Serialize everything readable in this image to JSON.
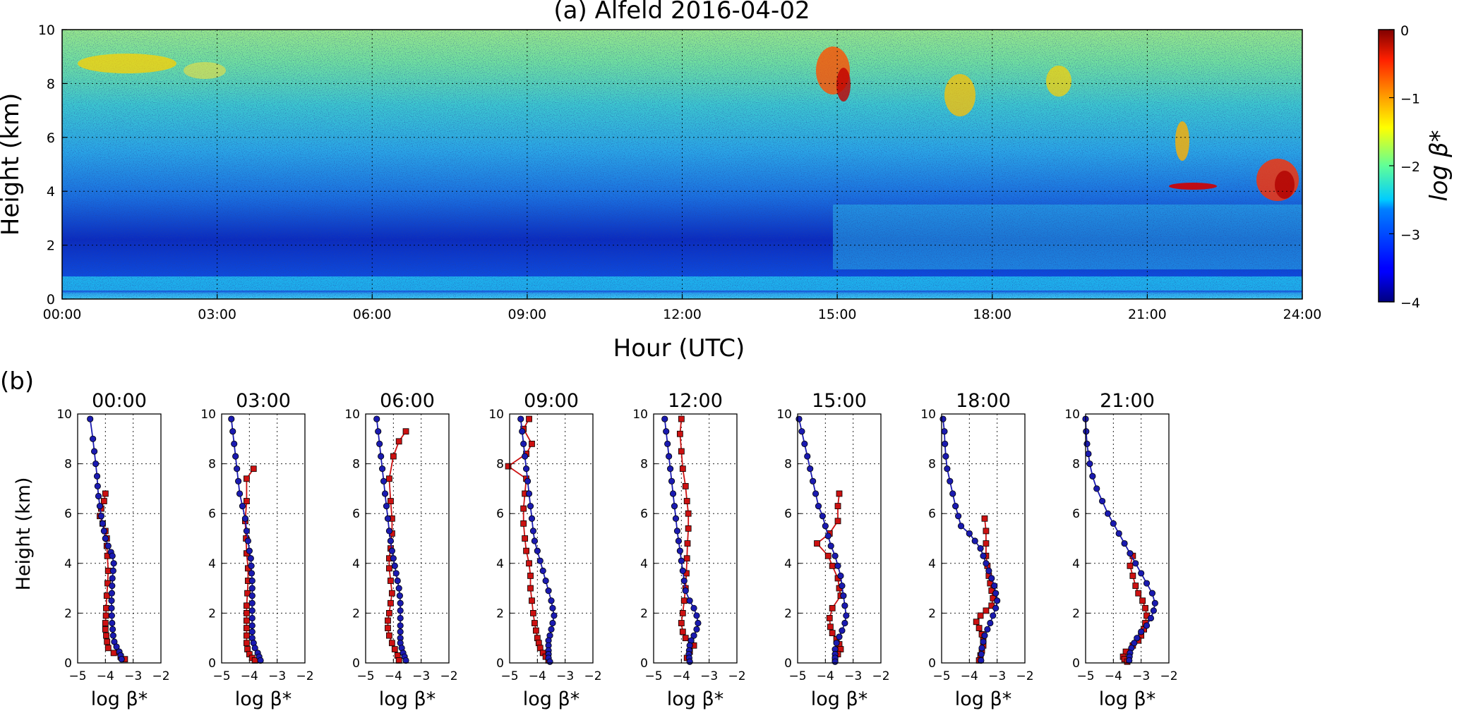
{
  "panel_a_tag": "(a)",
  "panel_b_tag": "(b)",
  "colorbar_label": "log β*",
  "chart_data": [
    {
      "type": "heatmap",
      "title": "(a) Alfeld 2016-04-02",
      "xlabel": "Hour (UTC)",
      "ylabel": "Height (km)",
      "xlim": [
        0,
        24
      ],
      "ylim": [
        0,
        10
      ],
      "x_ticks": [
        "00:00",
        "03:00",
        "06:00",
        "09:00",
        "12:00",
        "15:00",
        "18:00",
        "21:00",
        "24:00"
      ],
      "y_ticks": [
        "0",
        "2",
        "4",
        "6",
        "8",
        "10"
      ],
      "colorbar": {
        "label": "log β*",
        "range": [
          -4,
          0
        ],
        "ticks": [
          "−4",
          "−3",
          "−2",
          "−1",
          "0"
        ],
        "colormap": "jet"
      },
      "grid": true
    },
    {
      "type": "line",
      "panels": [
        {
          "title": "00:00",
          "blue": {
            "x": [
              -4.55,
              -4.45,
              -4.4,
              -4.35,
              -4.3,
              -4.28,
              -4.25,
              -4.2,
              -4.15,
              -4.1,
              -4.05,
              -4.0,
              -3.9,
              -3.8,
              -3.75,
              -3.7,
              -3.72,
              -3.75,
              -3.76,
              -3.77,
              -3.78,
              -3.78,
              -3.77,
              -3.76,
              -3.74,
              -3.72,
              -3.68,
              -3.6,
              -3.5,
              -3.45,
              -3.42
            ],
            "y": [
              9.8,
              9.0,
              8.5,
              8.0,
              7.5,
              7.1,
              6.7,
              6.3,
              5.9,
              5.6,
              5.3,
              5.0,
              4.7,
              4.45,
              4.3,
              4.0,
              3.7,
              3.4,
              3.1,
              2.8,
              2.5,
              2.2,
              1.9,
              1.6,
              1.35,
              1.1,
              0.85,
              0.65,
              0.45,
              0.3,
              0.15
            ]
          },
          "red": {
            "x": [
              -4.0,
              -4.05,
              -4.15,
              -4.2,
              -4.1,
              -4.0,
              -3.95,
              -3.95,
              -3.93,
              -3.9,
              -3.92,
              -3.95,
              -3.97,
              -3.98,
              -4.0,
              -4.0,
              -3.97,
              -3.94,
              -3.9,
              -3.7,
              -3.45,
              -3.3
            ],
            "y": [
              6.8,
              6.5,
              6.2,
              5.9,
              5.6,
              5.3,
              5.0,
              4.7,
              4.3,
              3.7,
              3.2,
              2.7,
              2.2,
              1.9,
              1.6,
              1.35,
              1.1,
              0.85,
              0.6,
              0.4,
              0.25,
              0.15
            ]
          }
        },
        {
          "title": "03:00",
          "blue": {
            "x": [
              -4.65,
              -4.6,
              -4.55,
              -4.5,
              -4.45,
              -4.4,
              -4.35,
              -4.25,
              -4.15,
              -4.1,
              -4.05,
              -4.0,
              -3.95,
              -3.93,
              -3.92,
              -3.9,
              -3.9,
              -3.9,
              -3.9,
              -3.9,
              -3.9,
              -3.9,
              -3.9,
              -3.9,
              -3.85,
              -3.8,
              -3.7,
              -3.65,
              -3.6
            ],
            "y": [
              9.8,
              9.3,
              8.8,
              8.3,
              7.8,
              7.3,
              6.8,
              6.3,
              5.8,
              5.3,
              4.9,
              4.5,
              4.2,
              3.9,
              3.6,
              3.3,
              3.0,
              2.7,
              2.4,
              2.1,
              1.8,
              1.5,
              1.25,
              1.0,
              0.8,
              0.6,
              0.4,
              0.25,
              0.1
            ]
          },
          "red": {
            "x": [
              -3.85,
              -4.1,
              -4.1,
              -4.15,
              -4.12,
              -4.1,
              -4.05,
              -4.05,
              -4.07,
              -4.1,
              -4.1,
              -4.1,
              -4.1,
              -4.1,
              -4.1,
              -4.07,
              -4.0,
              -3.9,
              -3.8
            ],
            "y": [
              7.8,
              7.4,
              6.5,
              5.7,
              5.0,
              4.4,
              3.8,
              3.3,
              2.8,
              2.3,
              2.0,
              1.7,
              1.4,
              1.1,
              0.8,
              0.55,
              0.35,
              0.2,
              0.1
            ]
          }
        },
        {
          "title": "06:00",
          "blue": {
            "x": [
              -4.6,
              -4.55,
              -4.5,
              -4.45,
              -4.4,
              -4.35,
              -4.3,
              -4.25,
              -4.2,
              -4.15,
              -4.1,
              -4.05,
              -4.0,
              -3.95,
              -3.9,
              -3.85,
              -3.8,
              -3.77,
              -3.75,
              -3.75,
              -3.75,
              -3.75,
              -3.75,
              -3.75,
              -3.75,
              -3.7,
              -3.65,
              -3.6,
              -3.55
            ],
            "y": [
              9.8,
              9.3,
              8.8,
              8.3,
              7.8,
              7.3,
              6.8,
              6.3,
              5.8,
              5.3,
              4.9,
              4.5,
              4.2,
              3.9,
              3.6,
              3.3,
              3.0,
              2.7,
              2.4,
              2.1,
              1.8,
              1.5,
              1.25,
              1.0,
              0.8,
              0.6,
              0.4,
              0.25,
              0.1
            ]
          },
          "red": {
            "x": [
              -3.55,
              -3.8,
              -4.0,
              -4.15,
              -4.1,
              -4.05,
              -4.05,
              -4.1,
              -4.15,
              -4.15,
              -4.1,
              -4.05,
              -4.1,
              -4.15,
              -4.2,
              -4.2,
              -4.15,
              -4.05,
              -3.95,
              -3.85,
              -3.8
            ],
            "y": [
              9.3,
              8.9,
              8.3,
              7.4,
              6.5,
              5.8,
              5.2,
              4.6,
              4.2,
              3.8,
              3.3,
              2.8,
              2.4,
              2.0,
              1.7,
              1.4,
              1.1,
              0.8,
              0.55,
              0.3,
              0.1
            ]
          }
        },
        {
          "title": "09:00",
          "blue": {
            "x": [
              -4.6,
              -4.55,
              -4.5,
              -4.45,
              -4.4,
              -4.35,
              -4.3,
              -4.25,
              -4.2,
              -4.15,
              -4.1,
              -4.0,
              -3.9,
              -3.8,
              -3.7,
              -3.6,
              -3.5,
              -3.45,
              -3.4,
              -3.45,
              -3.5,
              -3.55,
              -3.6,
              -3.6,
              -3.6,
              -3.6,
              -3.6,
              -3.55
            ],
            "y": [
              9.8,
              9.3,
              8.8,
              8.3,
              7.8,
              7.3,
              6.8,
              6.3,
              5.8,
              5.3,
              4.9,
              4.5,
              4.1,
              3.7,
              3.3,
              2.9,
              2.5,
              2.2,
              1.9,
              1.6,
              1.35,
              1.1,
              0.9,
              0.7,
              0.5,
              0.35,
              0.2,
              0.05
            ]
          },
          "red": {
            "x": [
              -4.3,
              -4.5,
              -4.2,
              -4.4,
              -5.05,
              -4.4,
              -4.45,
              -4.5,
              -4.5,
              -4.45,
              -4.4,
              -4.3,
              -4.25,
              -4.25,
              -4.2,
              -4.15,
              -4.1,
              -4.05,
              -4.0,
              -3.95,
              -3.9,
              -3.8,
              -3.7,
              -3.6
            ],
            "y": [
              9.8,
              9.4,
              8.8,
              8.4,
              7.9,
              7.4,
              6.8,
              6.2,
              5.6,
              5.0,
              4.5,
              4.0,
              3.5,
              3.0,
              2.5,
              2.0,
              1.6,
              1.3,
              1.0,
              0.8,
              0.6,
              0.4,
              0.25,
              0.1
            ]
          }
        },
        {
          "title": "12:00",
          "blue": {
            "x": [
              -4.6,
              -4.55,
              -4.5,
              -4.45,
              -4.4,
              -4.35,
              -4.3,
              -4.25,
              -4.2,
              -4.15,
              -4.1,
              -4.05,
              -4.0,
              -3.95,
              -3.9,
              -3.85,
              -3.7,
              -3.55,
              -3.45,
              -3.4,
              -3.45,
              -3.55,
              -3.65,
              -3.7,
              -3.72,
              -3.73,
              -3.72,
              -3.7
            ],
            "y": [
              9.8,
              9.3,
              8.8,
              8.3,
              7.8,
              7.3,
              6.8,
              6.3,
              5.8,
              5.3,
              4.9,
              4.5,
              4.1,
              3.7,
              3.3,
              2.9,
              2.5,
              2.2,
              1.9,
              1.6,
              1.35,
              1.1,
              0.9,
              0.7,
              0.5,
              0.35,
              0.2,
              0.05
            ]
          },
          "red": {
            "x": [
              -4.0,
              -4.05,
              -4.0,
              -3.95,
              -3.85,
              -3.8,
              -3.75,
              -3.75,
              -3.78,
              -3.8,
              -3.82,
              -3.85,
              -3.9,
              -3.95,
              -4.0,
              -3.95,
              -3.85,
              -3.65,
              -3.55,
              -3.7,
              -3.8
            ],
            "y": [
              9.8,
              9.2,
              8.5,
              7.8,
              7.1,
              6.5,
              6.0,
              5.4,
              4.8,
              4.2,
              3.6,
              3.0,
              2.5,
              2.0,
              1.6,
              1.25,
              1.0,
              0.85,
              0.7,
              0.45,
              0.2
            ]
          }
        },
        {
          "title": "15:00",
          "blue": {
            "x": [
              -4.95,
              -4.85,
              -4.75,
              -4.65,
              -4.55,
              -4.45,
              -4.35,
              -4.25,
              -4.1,
              -4.0,
              -3.9,
              -3.8,
              -3.65,
              -3.55,
              -3.45,
              -3.4,
              -3.35,
              -3.3,
              -3.25,
              -3.3,
              -3.4,
              -3.5,
              -3.6,
              -3.65,
              -3.65,
              -3.65,
              -3.65
            ],
            "y": [
              9.8,
              9.3,
              8.8,
              8.3,
              7.8,
              7.3,
              6.8,
              6.3,
              5.9,
              5.5,
              5.1,
              4.7,
              4.3,
              3.9,
              3.5,
              3.1,
              2.7,
              2.3,
              1.9,
              1.6,
              1.3,
              1.05,
              0.8,
              0.55,
              0.35,
              0.2,
              0.05
            ]
          },
          "red": {
            "x": [
              -3.5,
              -3.55,
              -3.55,
              -3.85,
              -4.3,
              -3.9,
              -3.75,
              -3.55,
              -3.5,
              -3.45,
              -3.75,
              -3.85,
              -3.82,
              -3.75,
              -3.6,
              -3.5,
              -3.45,
              -3.55,
              -3.65
            ],
            "y": [
              6.8,
              6.3,
              5.7,
              5.2,
              4.8,
              4.3,
              3.9,
              3.4,
              3.0,
              2.7,
              2.2,
              1.8,
              1.45,
              1.2,
              0.95,
              0.75,
              0.55,
              0.35,
              0.15
            ]
          }
        },
        {
          "title": "18:00",
          "blue": {
            "x": [
              -4.95,
              -4.9,
              -4.88,
              -4.85,
              -4.8,
              -4.7,
              -4.6,
              -4.5,
              -4.4,
              -4.3,
              -4.0,
              -3.8,
              -3.6,
              -3.5,
              -3.4,
              -3.3,
              -3.2,
              -3.1,
              -3.05,
              -3.0,
              -3.05,
              -3.15,
              -3.25,
              -3.35,
              -3.45,
              -3.5,
              -3.55,
              -3.57,
              -3.58
            ],
            "y": [
              9.8,
              9.3,
              8.8,
              8.3,
              7.8,
              7.3,
              6.8,
              6.3,
              5.9,
              5.5,
              5.2,
              4.9,
              4.6,
              4.3,
              4.0,
              3.7,
              3.4,
              3.1,
              2.8,
              2.5,
              2.2,
              1.9,
              1.6,
              1.35,
              1.1,
              0.85,
              0.6,
              0.35,
              0.1
            ]
          },
          "red": {
            "x": [
              -3.45,
              -3.4,
              -3.4,
              -3.4,
              -3.35,
              -3.3,
              -3.25,
              -3.2,
              -3.15,
              -3.2,
              -3.4,
              -3.6,
              -3.75,
              -3.65,
              -3.55,
              -3.5,
              -3.5,
              -3.55,
              -3.6,
              -3.65
            ],
            "y": [
              5.8,
              5.3,
              4.8,
              4.3,
              3.9,
              3.5,
              3.2,
              2.9,
              2.6,
              2.3,
              2.1,
              1.9,
              1.65,
              1.4,
              1.15,
              0.9,
              0.7,
              0.5,
              0.3,
              0.1
            ]
          }
        },
        {
          "title": "21:00",
          "blue": {
            "x": [
              -5.0,
              -4.98,
              -4.95,
              -4.9,
              -4.85,
              -4.75,
              -4.6,
              -4.4,
              -4.2,
              -4.0,
              -3.8,
              -3.6,
              -3.4,
              -3.2,
              -3.0,
              -2.8,
              -2.6,
              -2.5,
              -2.55,
              -2.65,
              -2.8,
              -3.0,
              -3.15,
              -3.25,
              -3.35,
              -3.4,
              -3.42,
              -3.43
            ],
            "y": [
              9.8,
              9.3,
              8.8,
              8.4,
              8.0,
              7.5,
              7.0,
              6.5,
              6.0,
              5.6,
              5.2,
              4.8,
              4.4,
              4.0,
              3.6,
              3.2,
              2.8,
              2.4,
              2.1,
              1.8,
              1.5,
              1.25,
              1.0,
              0.8,
              0.6,
              0.4,
              0.25,
              0.1
            ]
          },
          "red": {
            "x": [
              -3.3,
              -3.4,
              -3.3,
              -3.2,
              -3.1,
              -2.95,
              -2.85,
              -2.8,
              -2.85,
              -2.9,
              -3.0,
              -3.1,
              -3.3,
              -3.55,
              -3.65,
              -3.6,
              -3.5
            ],
            "y": [
              4.3,
              3.9,
              3.5,
              3.1,
              2.8,
              2.5,
              2.2,
              1.9,
              1.6,
              1.35,
              1.1,
              0.9,
              0.7,
              0.45,
              0.25,
              0.15,
              0.05
            ]
          }
        }
      ],
      "xlabel": "log β*",
      "ylabel": "Height (km)",
      "xlim": [
        -5,
        -2
      ],
      "ylim": [
        0,
        10
      ],
      "x_ticks": [
        "−5",
        "−4",
        "−3",
        "−2"
      ],
      "y_ticks": [
        "0",
        "2",
        "4",
        "6",
        "8",
        "10"
      ],
      "series_colors": {
        "blue": "#1a1ab0",
        "red": "#cc1111"
      },
      "grid": true
    }
  ]
}
